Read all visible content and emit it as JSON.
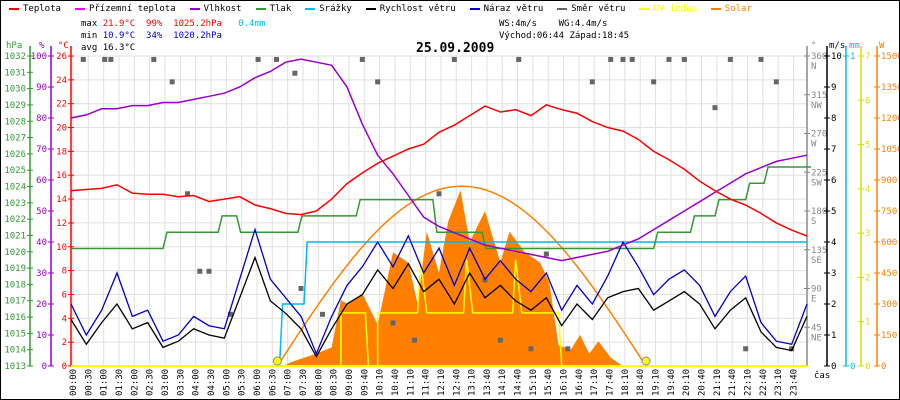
{
  "legend": [
    {
      "label": "Teplota",
      "color": "#ff0000"
    },
    {
      "label": "Přízemní teplota",
      "color": "#ff00ff"
    },
    {
      "label": "Vlhkost",
      "color": "#9900cc"
    },
    {
      "label": "Tlak",
      "color": "#339933"
    },
    {
      "label": "Srážky",
      "color": "#00bbee"
    },
    {
      "label": "Rychlost větru",
      "color": "#000000"
    },
    {
      "label": "Náraz větru",
      "color": "#0000cc"
    },
    {
      "label": "Směr větru",
      "color": "#666666"
    },
    {
      "label": "UV index",
      "color": "#ffff00"
    },
    {
      "label": "Solar",
      "color": "#ff8000"
    }
  ],
  "stats": {
    "max_label": "max",
    "max_temp": "21.9°C",
    "max_hum": "99%",
    "max_press": "1025.2hPa",
    "max_rain": "0.4mm",
    "min_label": "min",
    "min_temp": "10.9°C",
    "min_hum": "34%",
    "min_press": "1020.2hPa",
    "avg_label": "avg",
    "avg_temp": "16.3°C",
    "ws": "WS:4m/s",
    "wg": "WG:4.4m/s",
    "sunrise": "Východ:06:44",
    "sunset": "Západ:18:45"
  },
  "date": "25.09.2009",
  "colors": {
    "grid": "#e4dede",
    "temp": "#ff0000",
    "hum": "#9900cc",
    "press": "#339933",
    "rain": "#00bbee",
    "wind": "#000000",
    "gust": "#0000cc",
    "dir": "#666666",
    "uv": "#ffff00",
    "solar": "#ff8000"
  },
  "chart_data": {
    "type": "line",
    "x_unit": "hours",
    "xlabel": "čas",
    "x_tick_labels": [
      "00:00",
      "00:30",
      "01:00",
      "01:30",
      "02:00",
      "02:30",
      "03:00",
      "03:30",
      "04:00",
      "04:30",
      "05:00",
      "05:30",
      "06:00",
      "06:30",
      "07:00",
      "07:30",
      "08:00",
      "08:30",
      "09:00",
      "09:40",
      "10:10",
      "10:40",
      "11:10",
      "11:40",
      "12:10",
      "12:40",
      "13:10",
      "13:40",
      "14:10",
      "14:40",
      "15:10",
      "15:40",
      "16:10",
      "16:40",
      "17:10",
      "17:40",
      "18:10",
      "18:40",
      "19:10",
      "19:40",
      "20:10",
      "20:40",
      "21:10",
      "21:40",
      "22:10",
      "22:40",
      "23:10",
      "23:40"
    ],
    "axes": {
      "press": {
        "unit": "hPa",
        "range": [
          1013,
          1032
        ],
        "ticks": [
          1013,
          1014,
          1015,
          1016,
          1017,
          1018,
          1019,
          1020,
          1021,
          1022,
          1023,
          1024,
          1025,
          1026,
          1027,
          1028,
          1029,
          1030,
          1031,
          1032
        ]
      },
      "hum": {
        "unit": "%",
        "range": [
          0,
          100
        ],
        "ticks": [
          0,
          10,
          20,
          30,
          40,
          50,
          60,
          70,
          80,
          90,
          100
        ]
      },
      "temp": {
        "unit": "°C",
        "range": [
          0,
          26
        ],
        "ticks": [
          0,
          2,
          4,
          6,
          8,
          10,
          12,
          14,
          16,
          18,
          20,
          22,
          24,
          26
        ]
      },
      "dir": {
        "unit": "°",
        "range": [
          0,
          360
        ],
        "ticks": [
          {
            "v": 45,
            "l": "45",
            "c": "NE"
          },
          {
            "v": 90,
            "l": "90",
            "c": "E"
          },
          {
            "v": 135,
            "l": "135",
            "c": "SE"
          },
          {
            "v": 180,
            "l": "180",
            "c": "S"
          },
          {
            "v": 225,
            "l": "225",
            "c": "SW"
          },
          {
            "v": 270,
            "l": "270",
            "c": "W"
          },
          {
            "v": 315,
            "l": "315",
            "c": "NW"
          },
          {
            "v": 360,
            "l": "360",
            "c": "N"
          }
        ]
      },
      "wind": {
        "unit": "m/s",
        "range": [
          0,
          10
        ],
        "ticks": [
          0,
          1,
          2,
          3,
          4,
          5,
          6,
          7,
          8,
          9,
          10
        ]
      },
      "rain": {
        "unit": "mm",
        "range": [
          0,
          1
        ],
        "ticks": [
          0,
          1
        ]
      },
      "uv": {
        "unit": "",
        "range": [
          0,
          7
        ],
        "ticks": [
          0,
          1,
          2,
          3,
          4,
          5,
          6,
          7
        ]
      },
      "solar": {
        "unit": "W",
        "range": [
          0,
          1500
        ],
        "ticks": [
          0,
          150,
          300,
          450,
          600,
          750,
          900,
          1050,
          1200,
          1350,
          1500
        ]
      }
    },
    "series": {
      "temp": [
        [
          0,
          14.7
        ],
        [
          0.5,
          14.8
        ],
        [
          1,
          14.9
        ],
        [
          1.5,
          15.2
        ],
        [
          2,
          14.5
        ],
        [
          2.5,
          14.4
        ],
        [
          3,
          14.4
        ],
        [
          3.5,
          14.2
        ],
        [
          4,
          14.3
        ],
        [
          4.5,
          13.8
        ],
        [
          5,
          14.0
        ],
        [
          5.5,
          14.2
        ],
        [
          6,
          13.5
        ],
        [
          6.5,
          13.2
        ],
        [
          7,
          12.8
        ],
        [
          7.5,
          12.7
        ],
        [
          8,
          13.0
        ],
        [
          8.5,
          14.0
        ],
        [
          9,
          15.3
        ],
        [
          9.5,
          16.2
        ],
        [
          10,
          17.0
        ],
        [
          10.5,
          17.6
        ],
        [
          11,
          18.2
        ],
        [
          11.5,
          18.6
        ],
        [
          12,
          19.6
        ],
        [
          12.5,
          20.2
        ],
        [
          13,
          21.0
        ],
        [
          13.5,
          21.8
        ],
        [
          14,
          21.3
        ],
        [
          14.5,
          21.5
        ],
        [
          15,
          21.0
        ],
        [
          15.5,
          21.9
        ],
        [
          16,
          21.5
        ],
        [
          16.5,
          21.2
        ],
        [
          17,
          20.5
        ],
        [
          17.5,
          20.0
        ],
        [
          18,
          19.7
        ],
        [
          18.5,
          19.0
        ],
        [
          19,
          18.0
        ],
        [
          19.5,
          17.3
        ],
        [
          20,
          16.5
        ],
        [
          20.5,
          15.5
        ],
        [
          21,
          14.7
        ],
        [
          21.5,
          14.0
        ],
        [
          22,
          13.5
        ],
        [
          22.5,
          12.8
        ],
        [
          23,
          12.0
        ],
        [
          23.5,
          11.4
        ],
        [
          24,
          10.9
        ]
      ],
      "hum": [
        [
          0,
          80
        ],
        [
          0.5,
          81
        ],
        [
          1,
          83
        ],
        [
          1.5,
          83
        ],
        [
          2,
          84
        ],
        [
          2.5,
          84
        ],
        [
          3,
          85
        ],
        [
          3.5,
          85
        ],
        [
          4,
          86
        ],
        [
          4.5,
          87
        ],
        [
          5,
          88
        ],
        [
          5.5,
          90
        ],
        [
          6,
          93
        ],
        [
          6.5,
          95
        ],
        [
          7,
          98
        ],
        [
          7.5,
          99
        ],
        [
          8,
          98
        ],
        [
          8.5,
          97
        ],
        [
          9,
          90
        ],
        [
          9.5,
          78
        ],
        [
          10,
          68
        ],
        [
          10.5,
          62
        ],
        [
          11,
          55
        ],
        [
          11.5,
          48
        ],
        [
          12,
          45
        ],
        [
          12.5,
          43
        ],
        [
          13,
          41
        ],
        [
          13.5,
          39
        ],
        [
          14,
          38
        ],
        [
          14.5,
          37
        ],
        [
          15,
          36
        ],
        [
          15.5,
          35
        ],
        [
          16,
          34
        ],
        [
          16.5,
          35
        ],
        [
          17,
          36
        ],
        [
          17.5,
          37
        ],
        [
          18,
          39
        ],
        [
          18.5,
          41
        ],
        [
          19,
          44
        ],
        [
          19.5,
          47
        ],
        [
          20,
          50
        ],
        [
          20.5,
          53
        ],
        [
          21,
          56
        ],
        [
          21.5,
          59
        ],
        [
          22,
          62
        ],
        [
          22.5,
          64
        ],
        [
          23,
          66
        ],
        [
          23.5,
          67
        ],
        [
          24,
          68
        ]
      ],
      "press": [
        [
          0,
          1020.2
        ],
        [
          3,
          1021.2
        ],
        [
          4.8,
          1022.2
        ],
        [
          5.4,
          1021.2
        ],
        [
          7.4,
          1022.2
        ],
        [
          8.2,
          1022.2
        ],
        [
          9.3,
          1023.2
        ],
        [
          10.4,
          1023.2
        ],
        [
          11.8,
          1021.2
        ],
        [
          13.4,
          1020.2
        ],
        [
          19,
          1021.2
        ],
        [
          20.2,
          1022.2
        ],
        [
          21,
          1023.2
        ],
        [
          22,
          1024.2
        ],
        [
          22.6,
          1025.2
        ],
        [
          24,
          1025.2
        ]
      ],
      "rain": [
        [
          0,
          0
        ],
        [
          6.8,
          0
        ],
        [
          6.9,
          0.2
        ],
        [
          7.6,
          0.2
        ],
        [
          7.7,
          0.4
        ],
        [
          24,
          0.4
        ]
      ],
      "wind": [
        1.5,
        0.7,
        1.4,
        2.0,
        1.2,
        1.4,
        0.6,
        0.8,
        1.2,
        1.0,
        0.9,
        2.2,
        3.5,
        2.1,
        1.7,
        1.2,
        0.3,
        1.2,
        2.0,
        2.3,
        3.1,
        2.5,
        3.3,
        2.4,
        2.8,
        2.0,
        3.0,
        2.2,
        2.6,
        2.1,
        1.8,
        2.2,
        1.3,
        2.0,
        1.5,
        2.2,
        2.4,
        2.5,
        1.8,
        2.1,
        2.4,
        2.0,
        1.2,
        1.8,
        2.2,
        1.1,
        0.6,
        0.5,
        1.6
      ],
      "gust": [
        2.0,
        1.0,
        1.8,
        3.0,
        1.6,
        1.8,
        0.8,
        1.0,
        1.6,
        1.3,
        1.2,
        2.8,
        4.4,
        2.8,
        2.2,
        1.6,
        0.4,
        1.6,
        2.6,
        3.2,
        4.0,
        3.2,
        4.2,
        3.0,
        3.8,
        2.6,
        3.8,
        2.8,
        3.4,
        2.8,
        2.4,
        3.0,
        1.8,
        2.6,
        2.0,
        2.9,
        4.0,
        3.2,
        2.3,
        2.8,
        3.1,
        2.6,
        1.6,
        2.4,
        2.9,
        1.4,
        0.8,
        0.7,
        2.0
      ],
      "dir": [
        [
          0.4,
          356
        ],
        [
          1.1,
          356
        ],
        [
          1.3,
          356
        ],
        [
          2.7,
          356
        ],
        [
          3.3,
          330
        ],
        [
          3.8,
          200
        ],
        [
          4.2,
          110
        ],
        [
          4.5,
          110
        ],
        [
          5.2,
          60
        ],
        [
          6.1,
          356
        ],
        [
          6.7,
          356
        ],
        [
          7.3,
          340
        ],
        [
          7.5,
          90
        ],
        [
          8.2,
          60
        ],
        [
          9.5,
          356
        ],
        [
          10,
          330
        ],
        [
          10.5,
          50
        ],
        [
          11.2,
          30
        ],
        [
          12,
          200
        ],
        [
          12.5,
          356
        ],
        [
          13.5,
          100
        ],
        [
          14,
          30
        ],
        [
          14.6,
          356
        ],
        [
          15,
          20
        ],
        [
          15.5,
          130
        ],
        [
          16.2,
          20
        ],
        [
          17,
          330
        ],
        [
          17.6,
          356
        ],
        [
          18,
          356
        ],
        [
          18.3,
          356
        ],
        [
          19,
          330
        ],
        [
          19.5,
          356
        ],
        [
          20,
          356
        ],
        [
          21,
          300
        ],
        [
          21.5,
          356
        ],
        [
          22,
          20
        ],
        [
          22.5,
          356
        ],
        [
          23,
          330
        ],
        [
          23.5,
          20
        ]
      ],
      "solar": [
        [
          6.9,
          0
        ],
        [
          7.2,
          20
        ],
        [
          7.6,
          40
        ],
        [
          8,
          60
        ],
        [
          8.5,
          90
        ],
        [
          8.8,
          320
        ],
        [
          9,
          300
        ],
        [
          9.5,
          350
        ],
        [
          10,
          200
        ],
        [
          10.5,
          550
        ],
        [
          11,
          500
        ],
        [
          11.3,
          300
        ],
        [
          11.6,
          650
        ],
        [
          12,
          450
        ],
        [
          12.3,
          700
        ],
        [
          12.7,
          850
        ],
        [
          13,
          600
        ],
        [
          13.5,
          750
        ],
        [
          14,
          500
        ],
        [
          14.3,
          650
        ],
        [
          14.8,
          550
        ],
        [
          15.3,
          500
        ],
        [
          15.6,
          400
        ],
        [
          15.9,
          100
        ],
        [
          16.3,
          80
        ],
        [
          16.6,
          150
        ],
        [
          16.9,
          60
        ],
        [
          17.2,
          120
        ],
        [
          17.6,
          40
        ],
        [
          18,
          0
        ]
      ],
      "solar_theory": {
        "start": 6.73,
        "end": 18.75,
        "peak": 870
      },
      "uv": [
        [
          0,
          0
        ],
        [
          8.8,
          0
        ],
        [
          8.8,
          1.2
        ],
        [
          9.6,
          1.2
        ],
        [
          9.7,
          0
        ],
        [
          10,
          0
        ],
        [
          10,
          1.2
        ],
        [
          11.3,
          1.2
        ],
        [
          11.4,
          2.4
        ],
        [
          11.6,
          1.2
        ],
        [
          12.8,
          1.2
        ],
        [
          12.9,
          2.4
        ],
        [
          13.1,
          1.2
        ],
        [
          14.4,
          1.2
        ],
        [
          14.5,
          2.4
        ],
        [
          14.7,
          1.2
        ],
        [
          15.9,
          1.2
        ],
        [
          16,
          0
        ],
        [
          24,
          0
        ]
      ],
      "sun_markers": [
        6.73,
        18.75
      ]
    }
  }
}
